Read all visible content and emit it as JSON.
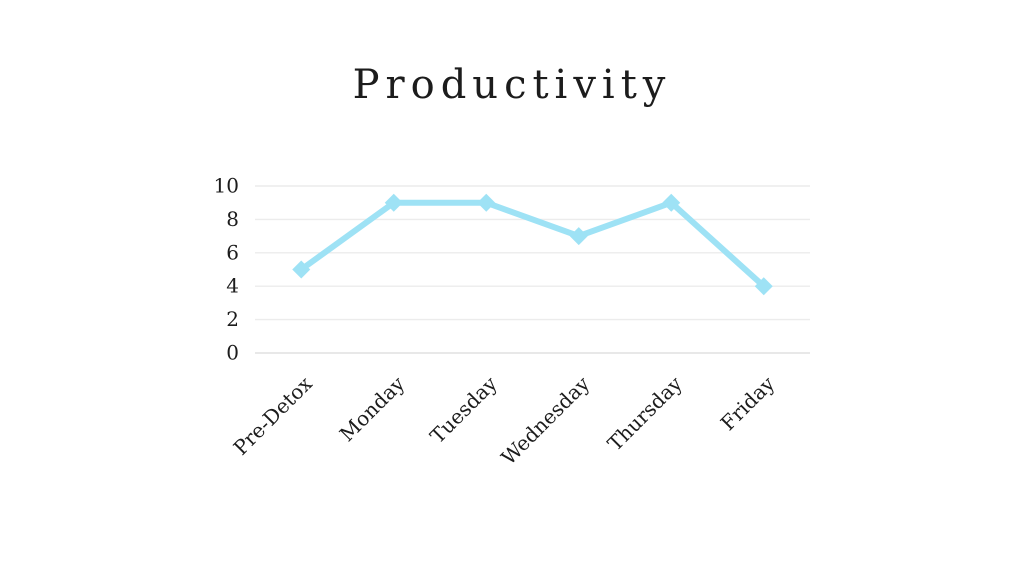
{
  "page": {
    "background_color": "#ffffff"
  },
  "chart_data": {
    "type": "line",
    "title": "Productivity",
    "categories": [
      "Pre-Detox",
      "Monday",
      "Tuesday",
      "Wednesday",
      "Thursday",
      "Friday"
    ],
    "values": [
      5,
      9,
      9,
      7,
      9,
      4
    ],
    "xlabel": "",
    "ylabel": "",
    "ylim": [
      0,
      10
    ],
    "y_ticks": [
      0,
      2,
      4,
      6,
      8,
      10
    ],
    "grid": "horizontal",
    "legend_position": "none",
    "line_color": "#9EE2F5",
    "marker_shape": "diamond",
    "marker_color": "#9EE2F5",
    "grid_color": "#ececec",
    "baseline_color": "#e0e0e0",
    "text_color": "#1c1c1c"
  }
}
